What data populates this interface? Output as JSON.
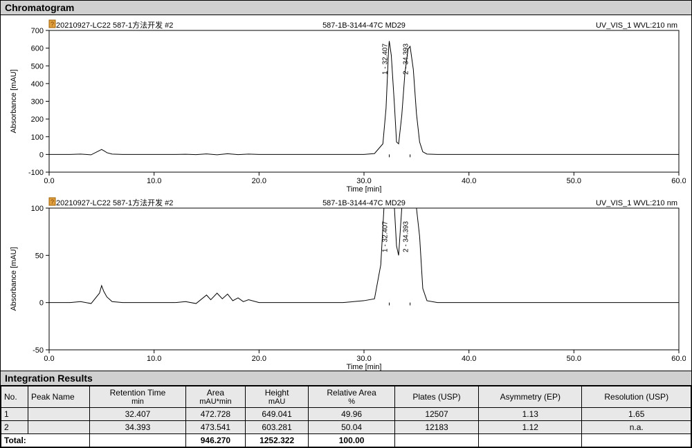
{
  "titles": {
    "chromatogram": "Chromatogram",
    "integration": "Integration Results"
  },
  "chart_common": {
    "header_left": "20210927-LC22  587-1方法开发 #2",
    "header_center": "587-1B-3144-47C MD29",
    "header_right": "UV_VIS_1 WVL:210 nm",
    "xlabel": "Time [min]",
    "ylabel": "Absorbance [mAU]",
    "xlim": [
      0,
      60
    ],
    "xticks": [
      0,
      10,
      20,
      30,
      40,
      50,
      60
    ],
    "font_family": "Arial",
    "axis_fontsize": 11,
    "header_fontsize": 11,
    "line_color": "#000000",
    "line_width": 1,
    "border_color": "#000000",
    "background_color": "#ffffff"
  },
  "chart1": {
    "ylim": [
      -100,
      700
    ],
    "yticks": [
      -100,
      0,
      100,
      200,
      300,
      400,
      500,
      600,
      700
    ],
    "peak_labels": [
      {
        "x": 32.407,
        "text": "1 - 32.407"
      },
      {
        "x": 34.393,
        "text": "2 - 34.393"
      }
    ],
    "baseline_y": 0,
    "trace": [
      [
        0,
        0
      ],
      [
        2,
        0
      ],
      [
        3,
        2
      ],
      [
        4,
        -2
      ],
      [
        5,
        28
      ],
      [
        5.3,
        18
      ],
      [
        5.5,
        10
      ],
      [
        6,
        2
      ],
      [
        7,
        0
      ],
      [
        8,
        0
      ],
      [
        10,
        0
      ],
      [
        12,
        0
      ],
      [
        13,
        1
      ],
      [
        14,
        -1
      ],
      [
        15,
        3
      ],
      [
        16,
        -2
      ],
      [
        17,
        4
      ],
      [
        18,
        -1
      ],
      [
        19,
        2
      ],
      [
        20,
        0
      ],
      [
        22,
        0
      ],
      [
        24,
        0
      ],
      [
        25,
        0
      ],
      [
        28,
        0
      ],
      [
        30,
        0
      ],
      [
        31,
        5
      ],
      [
        31.8,
        60
      ],
      [
        32.1,
        260
      ],
      [
        32.35,
        600
      ],
      [
        32.407,
        640
      ],
      [
        32.6,
        560
      ],
      [
        32.9,
        280
      ],
      [
        33.1,
        70
      ],
      [
        33.3,
        60
      ],
      [
        33.6,
        220
      ],
      [
        33.9,
        460
      ],
      [
        34.2,
        595
      ],
      [
        34.393,
        610
      ],
      [
        34.7,
        480
      ],
      [
        35.0,
        230
      ],
      [
        35.3,
        70
      ],
      [
        35.6,
        15
      ],
      [
        36,
        2
      ],
      [
        37,
        0
      ],
      [
        38,
        0
      ],
      [
        40,
        0
      ],
      [
        42,
        0
      ],
      [
        45,
        0
      ],
      [
        48,
        0
      ],
      [
        50,
        0
      ],
      [
        53,
        0
      ],
      [
        56,
        0
      ],
      [
        60,
        0
      ]
    ]
  },
  "chart2": {
    "ylim": [
      -50,
      100
    ],
    "yticks": [
      -50,
      0,
      50,
      100
    ],
    "peak_labels": [
      {
        "x": 32.407,
        "text": "1 - 32.407"
      },
      {
        "x": 34.393,
        "text": "2 - 34.393"
      }
    ],
    "baseline_y": 0,
    "trace": [
      [
        0,
        0
      ],
      [
        2,
        0
      ],
      [
        3,
        1
      ],
      [
        4,
        -1
      ],
      [
        4.8,
        10
      ],
      [
        5,
        18
      ],
      [
        5.2,
        12
      ],
      [
        5.5,
        6
      ],
      [
        6,
        1
      ],
      [
        7,
        0
      ],
      [
        8,
        0
      ],
      [
        10,
        0
      ],
      [
        12,
        0
      ],
      [
        13,
        1
      ],
      [
        14,
        -1
      ],
      [
        15,
        8
      ],
      [
        15.4,
        3
      ],
      [
        16,
        10
      ],
      [
        16.5,
        4
      ],
      [
        17,
        9
      ],
      [
        17.5,
        2
      ],
      [
        18,
        5
      ],
      [
        18.5,
        1
      ],
      [
        19,
        3
      ],
      [
        20,
        0
      ],
      [
        22,
        0
      ],
      [
        24,
        0
      ],
      [
        26,
        0
      ],
      [
        28,
        0
      ],
      [
        30,
        2
      ],
      [
        31,
        4
      ],
      [
        31.6,
        40
      ],
      [
        31.9,
        180
      ],
      [
        32.1,
        420
      ],
      [
        32.35,
        600
      ],
      [
        32.407,
        640
      ],
      [
        32.6,
        560
      ],
      [
        32.9,
        280
      ],
      [
        33.1,
        60
      ],
      [
        33.3,
        50
      ],
      [
        33.6,
        220
      ],
      [
        33.9,
        460
      ],
      [
        34.2,
        595
      ],
      [
        34.393,
        610
      ],
      [
        34.7,
        480
      ],
      [
        35.0,
        230
      ],
      [
        35.3,
        70
      ],
      [
        35.6,
        15
      ],
      [
        36,
        2
      ],
      [
        37,
        0
      ],
      [
        38,
        0
      ],
      [
        40,
        0
      ],
      [
        45,
        0
      ],
      [
        50,
        0
      ],
      [
        55,
        0
      ],
      [
        60,
        0
      ]
    ]
  },
  "table": {
    "columns": [
      {
        "label": "No.",
        "unit": ""
      },
      {
        "label": "Peak Name",
        "unit": ""
      },
      {
        "label": "Retention Time",
        "unit": "min"
      },
      {
        "label": "Area",
        "unit": "mAU*min"
      },
      {
        "label": "Height",
        "unit": "mAU"
      },
      {
        "label": "Relative Area",
        "unit": "%"
      },
      {
        "label": "Plates (USP)",
        "unit": ""
      },
      {
        "label": "Asymmetry (EP)",
        "unit": ""
      },
      {
        "label": "Resolution (USP)",
        "unit": ""
      }
    ],
    "rows": [
      [
        "1",
        "",
        "32.407",
        "472.728",
        "649.041",
        "49.96",
        "12507",
        "1.13",
        "1.65"
      ],
      [
        "2",
        "",
        "34.393",
        "473.541",
        "603.281",
        "50.04",
        "12183",
        "1.12",
        "n.a."
      ]
    ],
    "total_label": "Total:",
    "total": [
      "",
      "",
      "",
      "946.270",
      "1252.322",
      "100.00",
      "",
      "",
      ""
    ]
  }
}
